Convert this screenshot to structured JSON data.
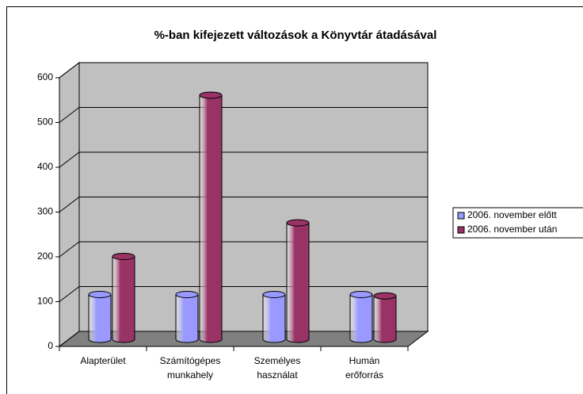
{
  "chart_data": {
    "type": "bar3d",
    "title": "%-ban kifejezett változások a Könyvtár átadásával",
    "categories": [
      [
        "Alapterület"
      ],
      [
        "Számítógépes",
        "munkahely"
      ],
      [
        "Személyes",
        "használat"
      ],
      [
        "Humán",
        "erőforrás"
      ]
    ],
    "series": [
      {
        "name": "2006. november előtt",
        "color": "#9999ff",
        "values": [
          100,
          100,
          100,
          100
        ]
      },
      {
        "name": "2006. november után",
        "color": "#993366",
        "values": [
          185,
          545,
          260,
          97
        ]
      }
    ],
    "ylim": [
      0,
      600
    ],
    "yticks": [
      0,
      100,
      200,
      300,
      400,
      500,
      600
    ],
    "grid": true,
    "legend": "right"
  }
}
